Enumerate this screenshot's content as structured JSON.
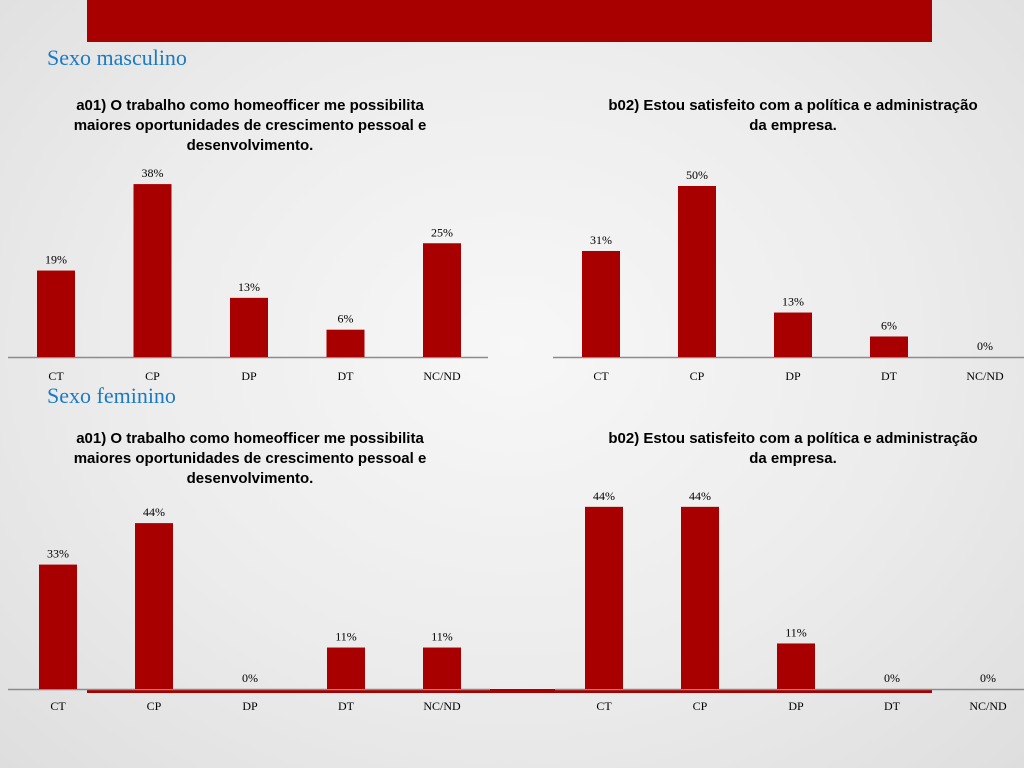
{
  "colors": {
    "bar": "#a80000",
    "accent": "#a80000",
    "section_title": "#1a7ac4",
    "axis": "#8c8c8c"
  },
  "sections": [
    {
      "title": "Sexo masculino"
    },
    {
      "title": "Sexo feminino"
    }
  ],
  "chart_data": [
    {
      "type": "bar",
      "section": "Sexo masculino",
      "title": "a01) O trabalho como homeofficer me possibilita maiores oportunidades de crescimento pessoal e desenvolvimento.",
      "categories": [
        "CT",
        "CP",
        "DP",
        "DT",
        "NC/ND"
      ],
      "values": [
        19,
        38,
        13,
        6,
        25
      ],
      "labels": [
        "19%",
        "38%",
        "13%",
        "6%",
        "25%"
      ],
      "unit": "%"
    },
    {
      "type": "bar",
      "section": "Sexo masculino",
      "title": "b02) Estou satisfeito com a política e administração da empresa.",
      "categories": [
        "CT",
        "CP",
        "DP",
        "DT",
        "NC/ND"
      ],
      "values": [
        31,
        50,
        13,
        6,
        0
      ],
      "labels": [
        "31%",
        "50%",
        "13%",
        "6%",
        "0%"
      ],
      "unit": "%"
    },
    {
      "type": "bar",
      "section": "Sexo feminino",
      "title": "a01) O trabalho como homeofficer me possibilita maiores oportunidades de crescimento pessoal e desenvolvimento.",
      "categories": [
        "CT",
        "CP",
        "DP",
        "DT",
        "NC/ND"
      ],
      "values": [
        33,
        44,
        0,
        11,
        11
      ],
      "labels": [
        "33%",
        "44%",
        "0%",
        "11%",
        "11%"
      ],
      "unit": "%"
    },
    {
      "type": "bar",
      "section": "Sexo feminino",
      "title": "b02) Estou satisfeito com a política e administração da empresa.",
      "categories": [
        "CT",
        "CP",
        "DP",
        "DT",
        "NC/ND"
      ],
      "values": [
        44,
        44,
        11,
        0,
        0
      ],
      "labels": [
        "44%",
        "44%",
        "11%",
        "0%",
        "0%"
      ],
      "unit": "%"
    }
  ]
}
